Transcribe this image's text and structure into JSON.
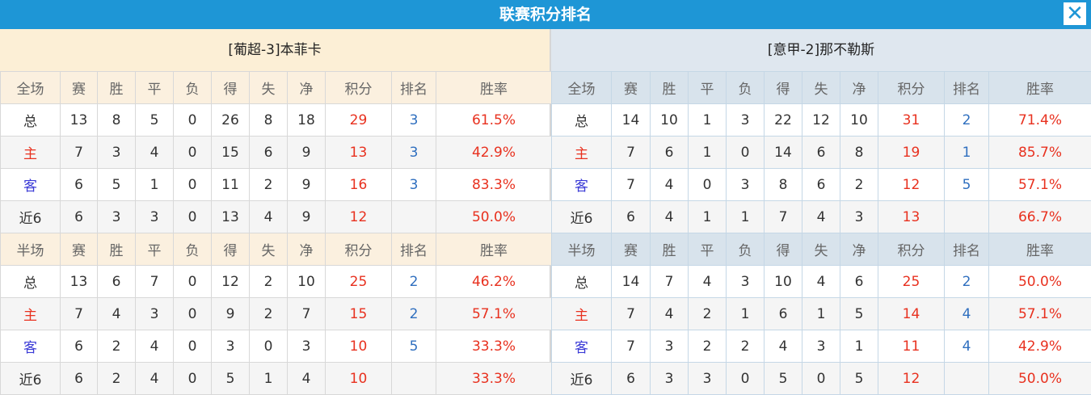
{
  "title": "联赛积分排名",
  "close_icon": "close-icon",
  "colors": {
    "title_bar": "#1e96d6",
    "points": "#e8311f",
    "rank": "#2f6fbf",
    "home": "#e8311f",
    "away": "#3a3ad6"
  },
  "columns": [
    "赛",
    "胜",
    "平",
    "负",
    "得",
    "失",
    "净",
    "积分",
    "排名",
    "胜率"
  ],
  "teams": [
    {
      "name": "[葡超-3]本菲卡",
      "full": {
        "label": "全场",
        "rows": [
          [
            "总",
            "13",
            "8",
            "5",
            "0",
            "26",
            "8",
            "18",
            "29",
            "3",
            "61.5%"
          ],
          [
            "主",
            "7",
            "3",
            "4",
            "0",
            "15",
            "6",
            "9",
            "13",
            "3",
            "42.9%"
          ],
          [
            "客",
            "6",
            "5",
            "1",
            "0",
            "11",
            "2",
            "9",
            "16",
            "3",
            "83.3%"
          ],
          [
            "近6",
            "6",
            "3",
            "3",
            "0",
            "13",
            "4",
            "9",
            "12",
            "",
            "50.0%"
          ]
        ]
      },
      "half": {
        "label": "半场",
        "rows": [
          [
            "总",
            "13",
            "6",
            "7",
            "0",
            "12",
            "2",
            "10",
            "25",
            "2",
            "46.2%"
          ],
          [
            "主",
            "7",
            "4",
            "3",
            "0",
            "9",
            "2",
            "7",
            "15",
            "2",
            "57.1%"
          ],
          [
            "客",
            "6",
            "2",
            "4",
            "0",
            "3",
            "0",
            "3",
            "10",
            "5",
            "33.3%"
          ],
          [
            "近6",
            "6",
            "2",
            "4",
            "0",
            "5",
            "1",
            "4",
            "10",
            "",
            "33.3%"
          ]
        ]
      }
    },
    {
      "name": "[意甲-2]那不勒斯",
      "full": {
        "label": "全场",
        "rows": [
          [
            "总",
            "14",
            "10",
            "1",
            "3",
            "22",
            "12",
            "10",
            "31",
            "2",
            "71.4%"
          ],
          [
            "主",
            "7",
            "6",
            "1",
            "0",
            "14",
            "6",
            "8",
            "19",
            "1",
            "85.7%"
          ],
          [
            "客",
            "7",
            "4",
            "0",
            "3",
            "8",
            "6",
            "2",
            "12",
            "5",
            "57.1%"
          ],
          [
            "近6",
            "6",
            "4",
            "1",
            "1",
            "7",
            "4",
            "3",
            "13",
            "",
            "66.7%"
          ]
        ]
      },
      "half": {
        "label": "半场",
        "rows": [
          [
            "总",
            "14",
            "7",
            "4",
            "3",
            "10",
            "4",
            "6",
            "25",
            "2",
            "50.0%"
          ],
          [
            "主",
            "7",
            "4",
            "2",
            "1",
            "6",
            "1",
            "5",
            "14",
            "4",
            "57.1%"
          ],
          [
            "客",
            "7",
            "3",
            "2",
            "2",
            "4",
            "3",
            "1",
            "11",
            "4",
            "42.9%"
          ],
          [
            "近6",
            "6",
            "3",
            "3",
            "0",
            "5",
            "0",
            "5",
            "12",
            "",
            "50.0%"
          ]
        ]
      }
    }
  ]
}
